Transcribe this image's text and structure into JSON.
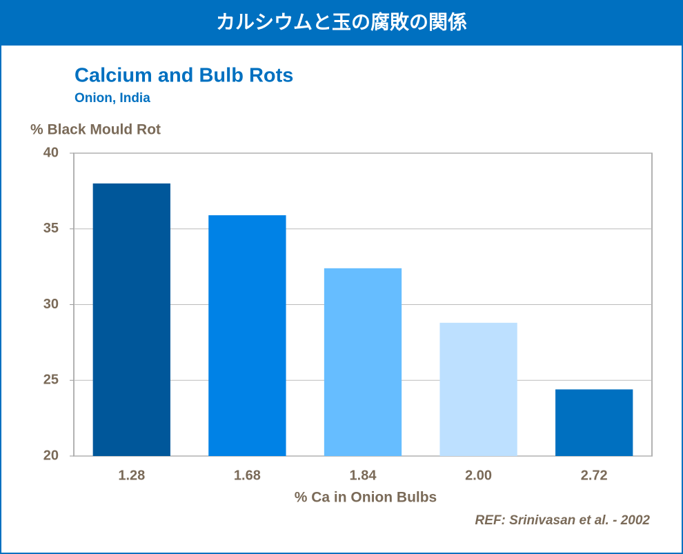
{
  "header": {
    "title": "カルシウムと玉の腐敗の関係"
  },
  "chart_data": {
    "type": "bar",
    "title": "Calcium and Bulb Rots",
    "subtitle": "Onion, India",
    "y_label": "% Black Mould Rot",
    "x_label": "% Ca in Onion Bulbs",
    "note": "REF: Srinivasan et al. - 2002",
    "categories": [
      "1.28",
      "1.68",
      "1.84",
      "2.00",
      "2.72"
    ],
    "values": [
      38,
      35.9,
      32.4,
      28.8,
      24.4
    ],
    "colors": [
      "#00579a",
      "#0082e6",
      "#66bdff",
      "#bde0ff",
      "#0070c0"
    ],
    "ylim": [
      20,
      40
    ],
    "yticks": [
      20,
      25,
      30,
      35,
      40
    ],
    "grid": true
  }
}
